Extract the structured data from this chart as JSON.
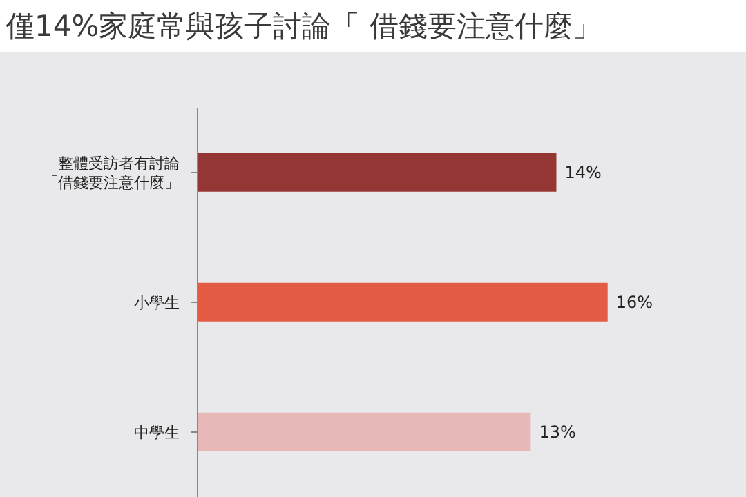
{
  "chart_data": {
    "type": "bar",
    "orientation": "horizontal",
    "title": "僅14%家庭常與孩子討論「 借錢要注意什麼」",
    "categories": [
      "整體受訪者有討論「借錢要注意什麼」",
      "小學生",
      "中學生"
    ],
    "values": [
      14,
      16,
      13
    ],
    "colors": [
      "#943634",
      "#e55c45",
      "#e8b8b8"
    ],
    "value_labels": [
      "14%",
      "16%",
      "13%"
    ]
  }
}
